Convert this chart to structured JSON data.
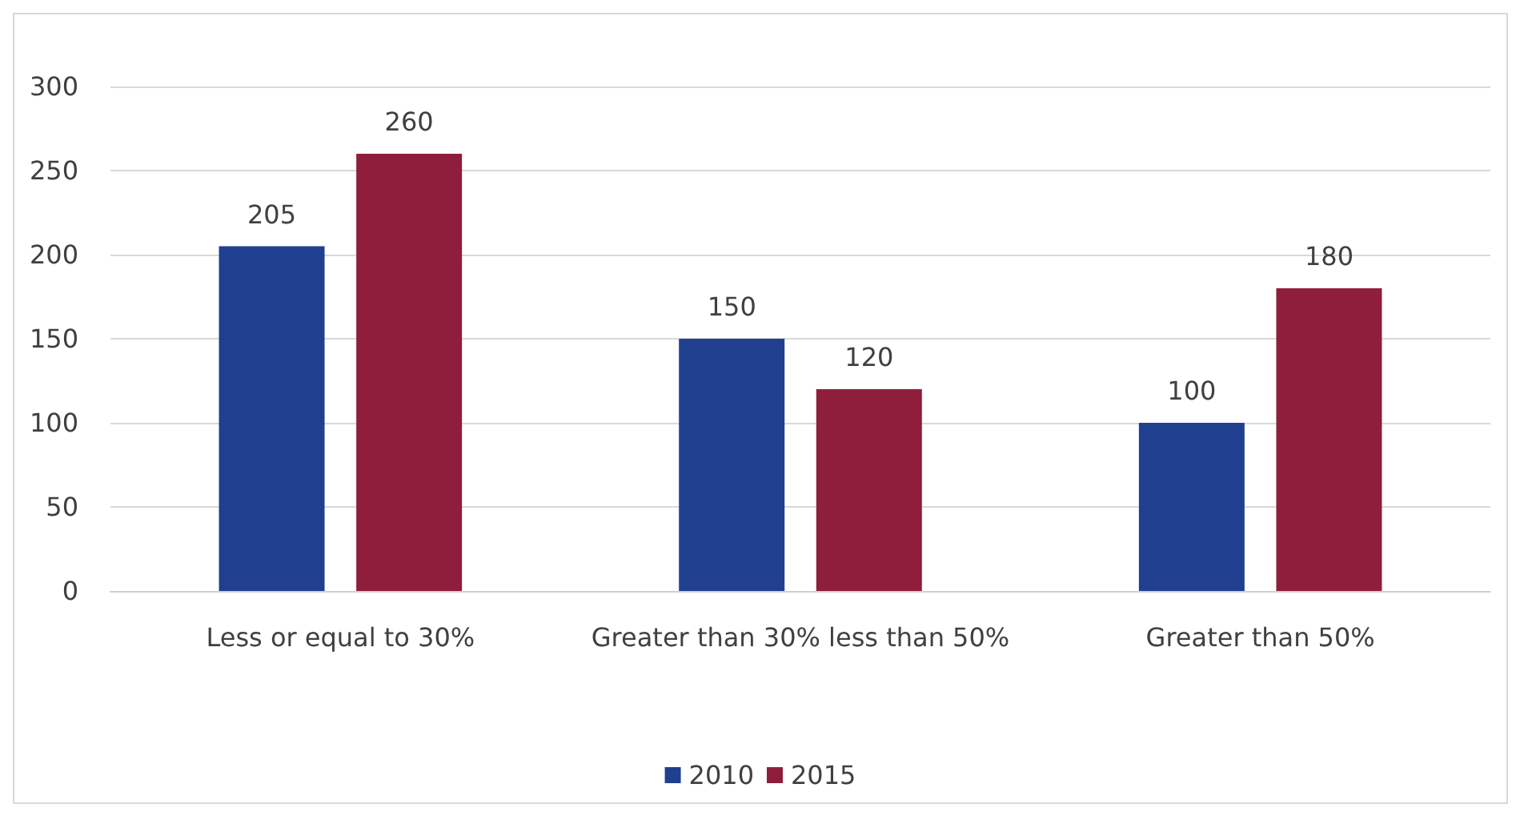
{
  "chart_data": {
    "type": "bar",
    "categories": [
      "Less or equal to 30%",
      "Greater than 30% less than 50%",
      "Greater than 50%"
    ],
    "series": [
      {
        "name": "2010",
        "color": "#213f8f",
        "values": [
          205,
          150,
          100
        ]
      },
      {
        "name": "2015",
        "color": "#8e1e3c",
        "values": [
          260,
          120,
          180
        ]
      }
    ],
    "ylim": [
      0,
      300
    ],
    "yticks": [
      0,
      50,
      100,
      150,
      200,
      250,
      300
    ],
    "grid": "y",
    "legend": "bottom",
    "data_labels": true
  }
}
